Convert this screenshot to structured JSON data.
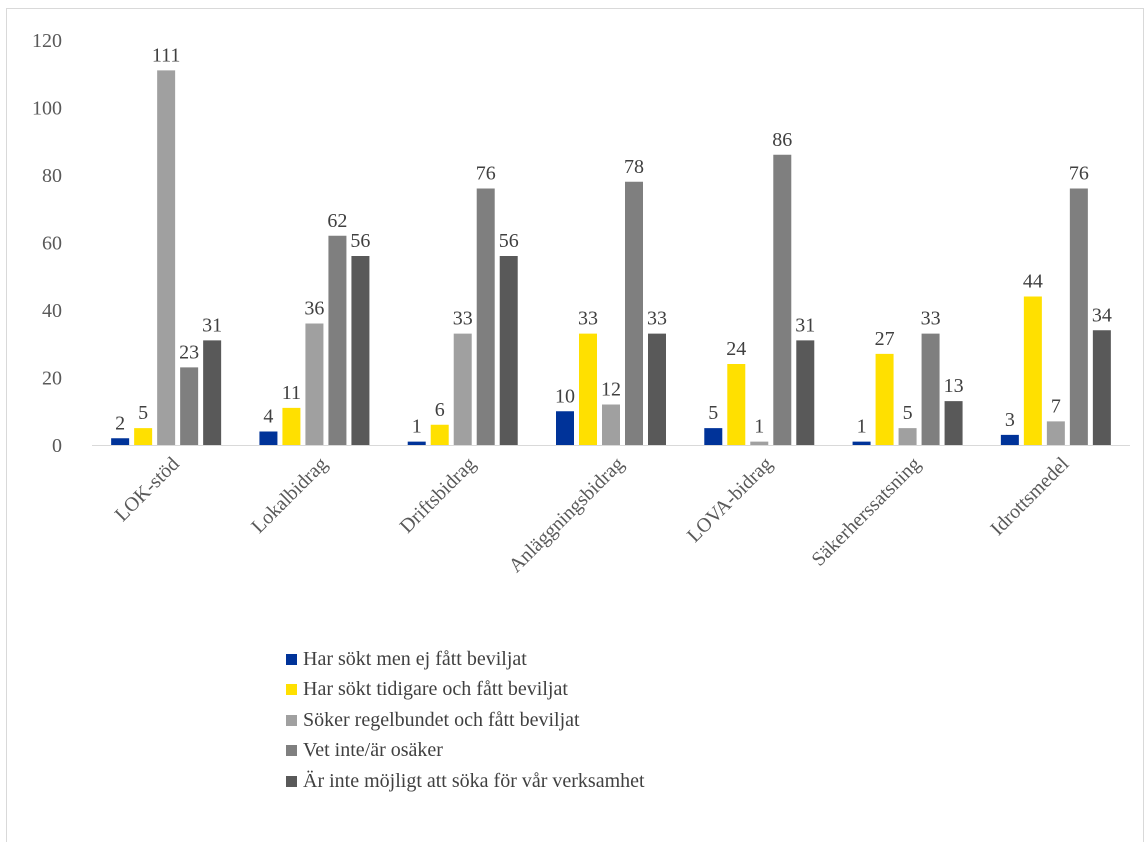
{
  "chart_data": {
    "type": "bar",
    "title": "",
    "xlabel": "",
    "ylabel": "",
    "ylim": [
      0,
      120
    ],
    "yticks": [
      0,
      20,
      40,
      60,
      80,
      100,
      120
    ],
    "grid": false,
    "legend_position": "bottom",
    "categories": [
      "LOK-stöd",
      "Lokalbidrag",
      "Driftsbidrag",
      "Anläggningsbidrag",
      "LOVA-bidrag",
      "Säkerherssatsning",
      "Idrottsmedel"
    ],
    "series": [
      {
        "name": "Har sökt men ej fått beviljat",
        "color": "#003399",
        "values": [
          2,
          4,
          1,
          10,
          5,
          1,
          3
        ]
      },
      {
        "name": "Har sökt tidigare och fått beviljat",
        "color": "#ffe000",
        "values": [
          5,
          11,
          6,
          33,
          24,
          27,
          44
        ]
      },
      {
        "name": "Söker regelbundet och fått beviljat",
        "color": "#a0a0a0",
        "values": [
          111,
          36,
          33,
          12,
          1,
          5,
          7
        ]
      },
      {
        "name": "Vet inte/är osäker",
        "color": "#7f7f7f",
        "values": [
          23,
          62,
          76,
          78,
          86,
          33,
          76
        ]
      },
      {
        "name": "Är inte möjligt att söka för vår verksamhet",
        "color": "#595959",
        "values": [
          31,
          56,
          56,
          33,
          31,
          13,
          34
        ]
      }
    ]
  }
}
